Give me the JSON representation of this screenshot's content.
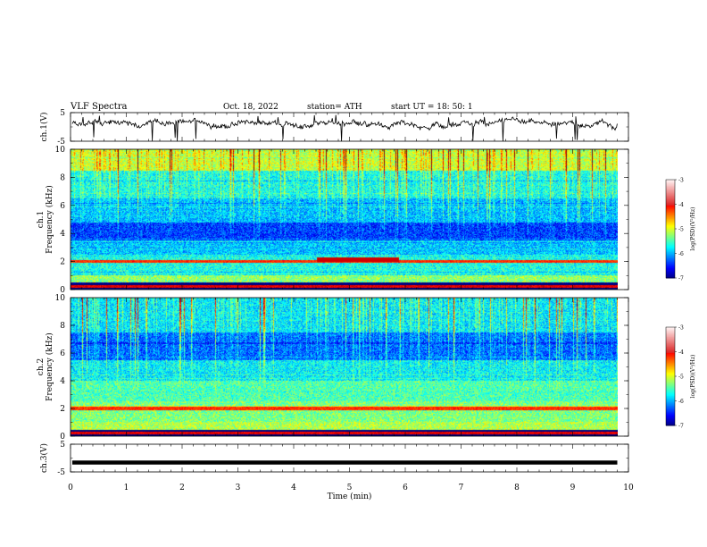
{
  "header": {
    "title": "VLF  Spectra",
    "date": "Oct. 18, 2022",
    "station": "station= ATH",
    "start": "start  UT  =    18: 50: 1"
  },
  "chart_data": [
    {
      "type": "line",
      "name": "ch1-waveform",
      "ylabel": "ch.1(V)",
      "ylim": [
        -5,
        5
      ],
      "yticks": [
        "5",
        "-5"
      ],
      "xlim": [
        0,
        10
      ],
      "data_end": 9.8
    },
    {
      "type": "heatmap",
      "name": "ch1-spectrogram",
      "ylabel": "ch.1\nFrequency  (kHz)",
      "ylim": [
        0,
        10
      ],
      "yticks": [
        "0",
        "2",
        "4",
        "6",
        "8",
        "10"
      ],
      "xlim": [
        0,
        10
      ],
      "data_end": 9.8,
      "colorbar": {
        "label": "log(PSD)(V²/Hz)",
        "range": [
          -7,
          -3
        ],
        "ticks": [
          "-3",
          "-4",
          "-5",
          "-6",
          "-7"
        ]
      }
    },
    {
      "type": "heatmap",
      "name": "ch2-spectrogram",
      "ylabel": "ch.2\nFrequency  (kHz)",
      "ylim": [
        0,
        10
      ],
      "yticks": [
        "0",
        "2",
        "4",
        "6",
        "8",
        "10"
      ],
      "xlim": [
        0,
        10
      ],
      "data_end": 9.8,
      "colorbar": {
        "label": "log(PSD)(V²/Hz)",
        "range": [
          -7,
          -3
        ],
        "ticks": [
          "-3",
          "-4",
          "-5",
          "-6",
          "-7"
        ]
      }
    },
    {
      "type": "line",
      "name": "ch3-waveform",
      "ylabel": "ch.3(V)",
      "ylim": [
        -5,
        5
      ],
      "yticks": [
        "5",
        "-5"
      ],
      "xlim": [
        0,
        10
      ],
      "xlabel": "Time  (min)",
      "xticks": [
        "0",
        "1",
        "2",
        "3",
        "4",
        "5",
        "6",
        "7",
        "8",
        "9",
        "10"
      ],
      "data_end": 9.8,
      "level": -1.6
    }
  ]
}
